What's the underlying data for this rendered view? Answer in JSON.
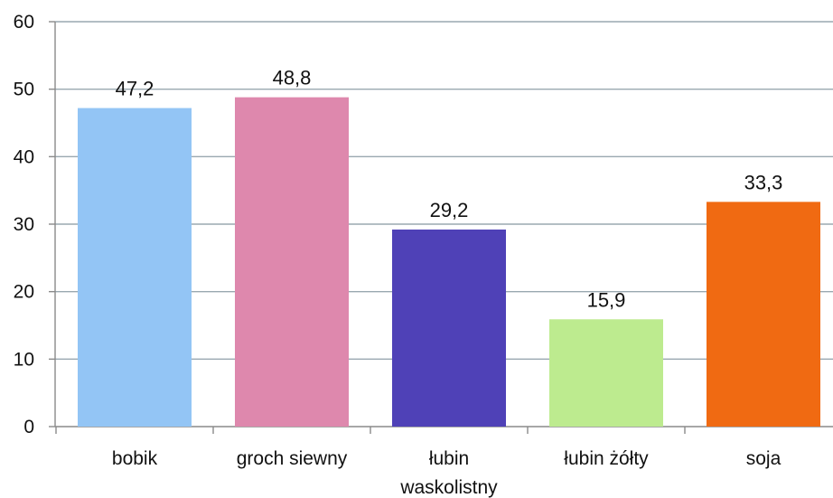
{
  "chart_data": {
    "type": "bar",
    "title": "",
    "xlabel": "",
    "ylabel": "",
    "ylim": [
      0,
      60
    ],
    "yticks": [
      "0",
      "10",
      "20",
      "30",
      "40",
      "50",
      "60"
    ],
    "categories": [
      [
        "bobik"
      ],
      [
        "groch siewny"
      ],
      [
        "łubin",
        "waskolistny"
      ],
      [
        "łubin żółty"
      ],
      [
        "soja"
      ]
    ],
    "values": [
      47.2,
      48.8,
      29.2,
      15.9,
      33.3
    ],
    "data_labels": [
      "47,2",
      "48,8",
      "29,2",
      "15,9",
      "33,3"
    ],
    "colors": [
      "#93c5f5",
      "#de88ad",
      "#4f41b7",
      "#bdeb8f",
      "#f06a12"
    ],
    "grid": true,
    "legend": "none"
  }
}
